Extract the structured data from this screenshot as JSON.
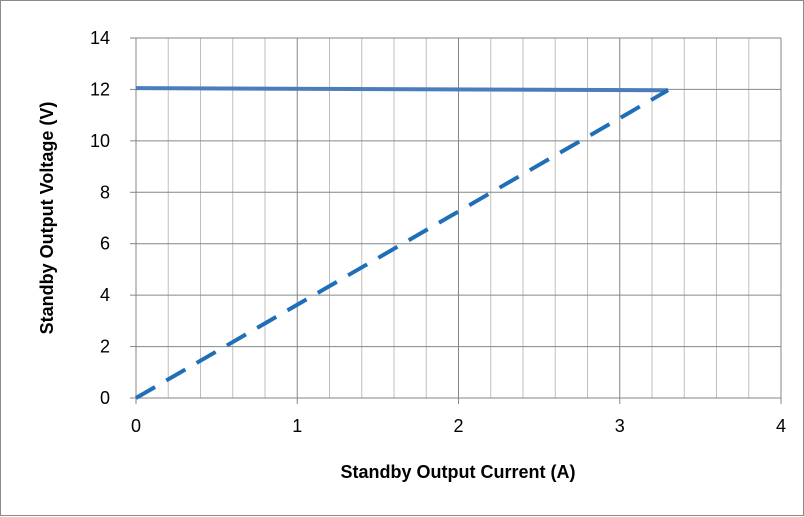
{
  "chart_data": {
    "type": "line",
    "title": "",
    "xlabel": "Standby Output Current (A)",
    "ylabel": "Standby Output Voltage (V)",
    "xlim": [
      0,
      4
    ],
    "ylim": [
      0,
      14
    ],
    "x_major_ticks": [
      0,
      1,
      2,
      3,
      4
    ],
    "y_major_ticks": [
      0,
      2,
      4,
      6,
      8,
      10,
      12,
      14
    ],
    "x_minor_step": 0.2,
    "grid": true,
    "legend": "none",
    "series": [
      {
        "style": "solid",
        "color": "#4a7ebb",
        "x": [
          0,
          3.3
        ],
        "y": [
          12.05,
          11.97
        ]
      },
      {
        "style": "dashed",
        "color": "#1f6fb8",
        "x": [
          0,
          3.3
        ],
        "y": [
          0,
          11.97
        ]
      }
    ]
  }
}
